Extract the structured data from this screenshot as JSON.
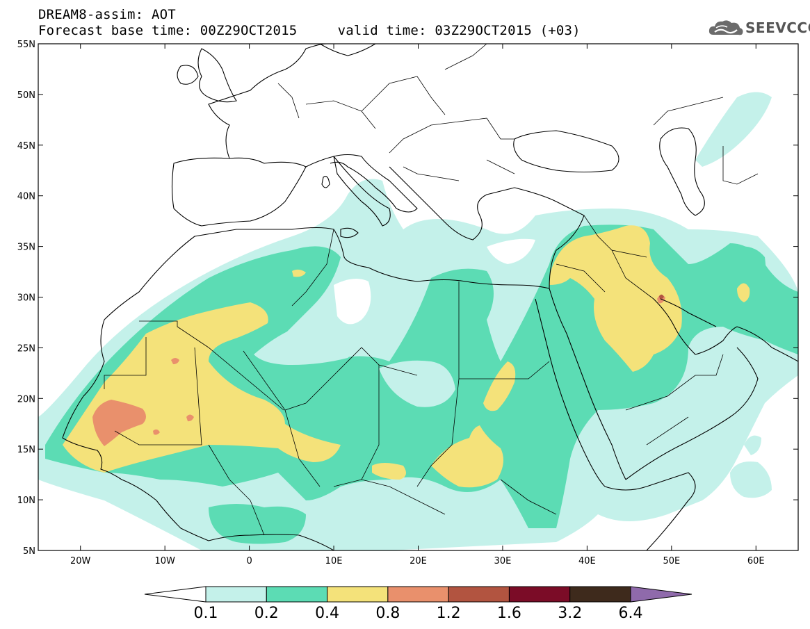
{
  "header": {
    "title_line1": "DREAM8-assim: AOT",
    "base_time": "Forecast base time: 00Z29OCT2015",
    "valid_time": "valid time: 03Z29OCT2015 (+03)"
  },
  "logo": {
    "text": "SEEVCCC",
    "icon": "cloud-icon"
  },
  "map": {
    "variable": "Aerosol optical thickness",
    "lon_range": [
      -25,
      65
    ],
    "lat_range": [
      5,
      55
    ],
    "lat_ticks": [
      "5N",
      "10N",
      "15N",
      "20N",
      "25N",
      "30N",
      "35N",
      "40N",
      "45N",
      "50N",
      "55N"
    ],
    "lon_ticks": [
      "20W",
      "10W",
      "0",
      "10E",
      "20E",
      "30E",
      "40E",
      "50E",
      "60E"
    ]
  },
  "colorbar": {
    "levels": [
      "0.1",
      "0.2",
      "0.4",
      "0.8",
      "1.2",
      "1.6",
      "3.2",
      "6.4"
    ],
    "colors": [
      "#ffffff",
      "#c4f1ea",
      "#5cdcb4",
      "#f4e27a",
      "#e9906c",
      "#b25440",
      "#7b0c27",
      "#3e2a1c",
      "#8f6aab"
    ]
  },
  "colors": {
    "bin_0_1_0_2": "#c4f1ea",
    "bin_0_2_0_4": "#5cdcb4",
    "bin_0_4_0_8": "#f4e27a",
    "bin_0_8_1_2": "#e9906c",
    "bin_1_2_1_6": "#b25440",
    "bin_1_6_3_2": "#7b0c27"
  }
}
